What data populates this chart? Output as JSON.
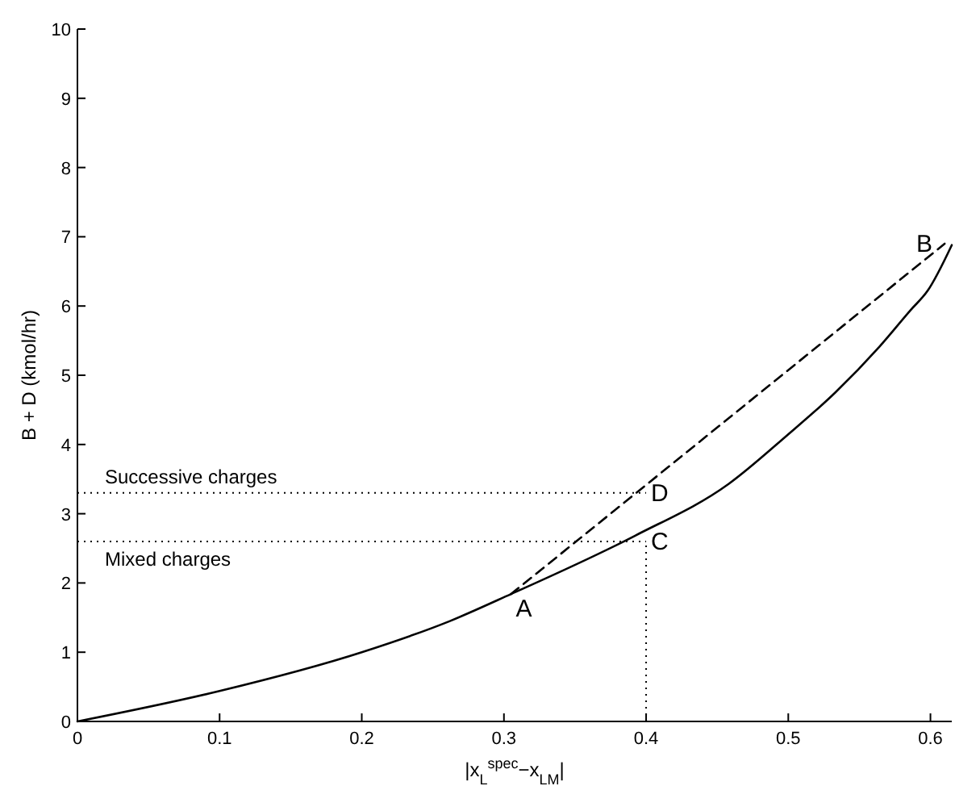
{
  "chart_data": {
    "type": "line",
    "xlabel": "|x$_{L}$$^{spec}$−x$_{LM}$|",
    "ylabel": "B + D (kmol/hr)",
    "xlim": [
      0,
      0.615
    ],
    "xticks": [
      0,
      0.1,
      0.2,
      0.3,
      0.4,
      0.5,
      0.6
    ],
    "ylim": [
      0,
      10
    ],
    "yticks": [
      0,
      1,
      2,
      3,
      4,
      5,
      6,
      7,
      8,
      9,
      10
    ],
    "grid": false,
    "series": [
      {
        "color": "#000000",
        "line_style": "solid",
        "x": [
          0,
          0.1,
          0.2,
          0.262,
          0.305,
          0.392,
          0.458,
          0.499,
          0.533,
          0.564,
          0.586,
          0.598,
          0.615
        ],
        "values": [
          0,
          0.44,
          1.0,
          1.45,
          1.84,
          2.68,
          3.43,
          4.13,
          4.75,
          5.41,
          5.94,
          6.22,
          6.88
        ]
      },
      {
        "color": "#000000",
        "line_style": "dashed",
        "x": [
          0.305,
          0.61
        ],
        "values": [
          1.84,
          6.9
        ]
      }
    ],
    "ref_lines": [
      {
        "axis": "y",
        "value": 3.3,
        "label": "Successive charges",
        "line_style": "dotted"
      },
      {
        "axis": "y",
        "value": 2.6,
        "label": "Mixed charges",
        "line_style": "dotted"
      },
      {
        "axis": "x",
        "value": 0.4,
        "line_style": "dotted"
      }
    ],
    "annotations": [
      {
        "text": "A",
        "x": 0.305,
        "y": 1.84
      },
      {
        "text": "B",
        "x": 0.61,
        "y": 6.9
      },
      {
        "text": "C",
        "x": 0.4,
        "y": 2.6
      },
      {
        "text": "D",
        "x": 0.4,
        "y": 3.3
      }
    ]
  }
}
